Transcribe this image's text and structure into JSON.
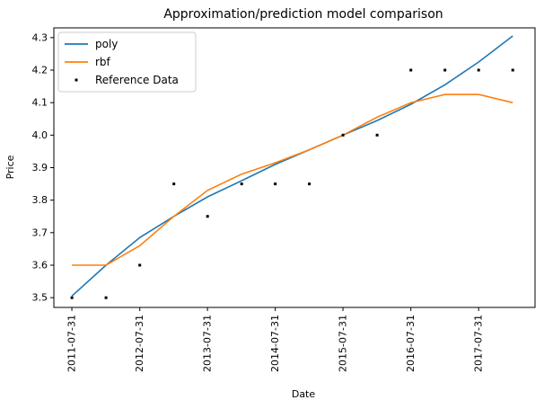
{
  "chart_data": {
    "type": "line",
    "title": "Approximation/prediction model comparison",
    "xlabel": "Date",
    "ylabel": "Price",
    "x_ticks": [
      "2011-07-31",
      "2012-07-31",
      "2013-07-31",
      "2014-07-31",
      "2015-07-31",
      "2016-07-31",
      "2017-07-31"
    ],
    "y_ticks": [
      "3.5",
      "3.6",
      "3.7",
      "3.8",
      "3.9",
      "4.0",
      "4.1",
      "4.2",
      "4.3"
    ],
    "ylim": [
      3.47,
      4.33
    ],
    "xlim": [
      "2011-04-25",
      "2018-05-31"
    ],
    "grid": false,
    "legend_position": "top-left",
    "series": [
      {
        "name": "poly",
        "kind": "line",
        "color": "#1f77b4",
        "x": [
          "2011-07-31",
          "2012-01-31",
          "2012-07-31",
          "2013-01-31",
          "2013-07-31",
          "2014-01-31",
          "2014-07-31",
          "2015-01-31",
          "2015-07-31",
          "2016-01-31",
          "2016-07-31",
          "2017-01-31",
          "2017-07-31",
          "2018-01-31"
        ],
        "values": [
          3.505,
          3.6,
          3.685,
          3.75,
          3.81,
          3.86,
          3.91,
          3.955,
          4.0,
          4.045,
          4.095,
          4.155,
          4.225,
          4.305
        ]
      },
      {
        "name": "rbf",
        "kind": "line",
        "color": "#ff7f0e",
        "x": [
          "2011-07-31",
          "2012-01-31",
          "2012-07-31",
          "2013-01-31",
          "2013-07-31",
          "2014-01-31",
          "2014-07-31",
          "2015-01-31",
          "2015-07-31",
          "2016-01-31",
          "2016-07-31",
          "2017-01-31",
          "2017-07-31",
          "2018-01-31"
        ],
        "values": [
          3.6,
          3.6,
          3.66,
          3.75,
          3.83,
          3.88,
          3.915,
          3.955,
          4.0,
          4.055,
          4.1,
          4.125,
          4.125,
          4.1
        ]
      },
      {
        "name": "Reference Data",
        "kind": "scatter",
        "color": "#000000",
        "x": [
          "2011-07-31",
          "2012-01-31",
          "2012-07-31",
          "2013-01-31",
          "2013-07-31",
          "2014-01-31",
          "2014-07-31",
          "2015-01-31",
          "2015-07-31",
          "2016-01-31",
          "2016-07-31",
          "2017-01-31",
          "2017-07-31",
          "2018-01-31"
        ],
        "values": [
          3.5,
          3.5,
          3.6,
          3.85,
          3.75,
          3.85,
          3.85,
          3.85,
          4.0,
          4.0,
          4.2,
          4.2,
          4.2,
          4.2
        ]
      }
    ]
  }
}
